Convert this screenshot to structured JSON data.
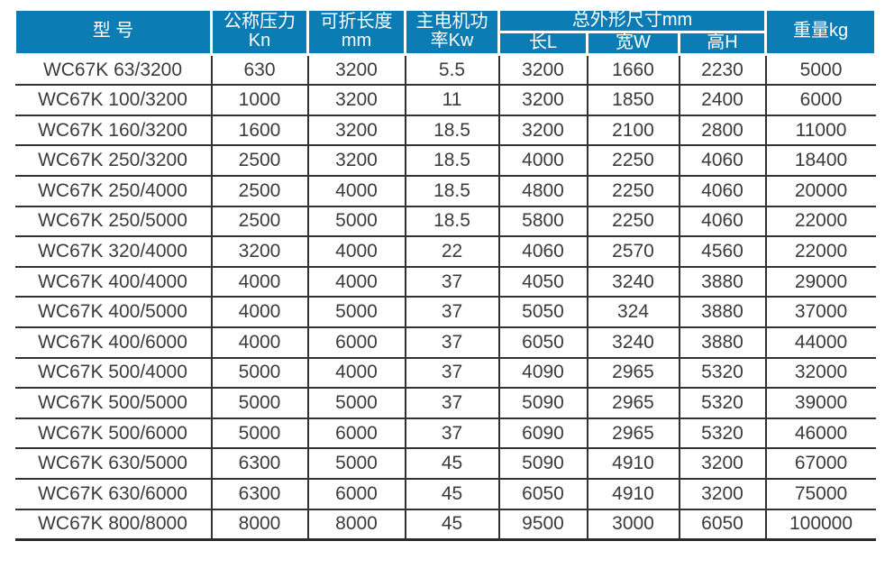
{
  "colors": {
    "header_bg": "#0c7cb5",
    "header_text": "#ffffff",
    "border_dark": "#333333",
    "body_text": "#3b3b3b"
  },
  "table": {
    "header": {
      "model": "型 号",
      "pressure": {
        "line1": "公称压力",
        "line2": "Kn"
      },
      "fold_length": {
        "line1": "可折长度",
        "line2": "mm"
      },
      "motor_power": {
        "line1": "主电机功",
        "line2": "率Kw"
      },
      "dimensions_group": "总外形尺寸mm",
      "dim_length": "长L",
      "dim_width": "宽W",
      "dim_height": "高H",
      "weight": "重量kg"
    },
    "rows": [
      [
        "WC67K 63/3200",
        "630",
        "3200",
        "5.5",
        "3200",
        "1660",
        "2230",
        "5000"
      ],
      [
        "WC67K 100/3200",
        "1000",
        "3200",
        "11",
        "3200",
        "1850",
        "2400",
        "6000"
      ],
      [
        "WC67K 160/3200",
        "1600",
        "3200",
        "18.5",
        "3200",
        "2100",
        "2800",
        "11000"
      ],
      [
        "WC67K 250/3200",
        "2500",
        "3200",
        "18.5",
        "4000",
        "2250",
        "4060",
        "18400"
      ],
      [
        "WC67K 250/4000",
        "2500",
        "4000",
        "18.5",
        "4800",
        "2250",
        "4060",
        "20000"
      ],
      [
        "WC67K 250/5000",
        "2500",
        "5000",
        "18.5",
        "5800",
        "2250",
        "4060",
        "22000"
      ],
      [
        "WC67K 320/4000",
        "3200",
        "4000",
        "22",
        "4060",
        "2570",
        "4560",
        "22000"
      ],
      [
        "WC67K 400/4000",
        "4000",
        "4000",
        "37",
        "4050",
        "3240",
        "3880",
        "29000"
      ],
      [
        "WC67K 400/5000",
        "4000",
        "5000",
        "37",
        "5050",
        "324",
        "3880",
        "37000"
      ],
      [
        "WC67K 400/6000",
        "4000",
        "6000",
        "37",
        "6050",
        "3240",
        "3880",
        "44000"
      ],
      [
        "WC67K 500/4000",
        "5000",
        "4000",
        "37",
        "4090",
        "2965",
        "5320",
        "32000"
      ],
      [
        "WC67K 500/5000",
        "5000",
        "5000",
        "37",
        "5090",
        "2965",
        "5320",
        "39000"
      ],
      [
        "WC67K 500/6000",
        "5000",
        "6000",
        "37",
        "6090",
        "2965",
        "5320",
        "46000"
      ],
      [
        "WC67K 630/5000",
        "6300",
        "5000",
        "45",
        "5090",
        "4910",
        "3200",
        "67000"
      ],
      [
        "WC67K 630/6000",
        "6300",
        "6000",
        "45",
        "6050",
        "4910",
        "3200",
        "75000"
      ],
      [
        "WC67K 800/8000",
        "8000",
        "8000",
        "45",
        "9500",
        "3000",
        "6050",
        "100000"
      ]
    ]
  }
}
